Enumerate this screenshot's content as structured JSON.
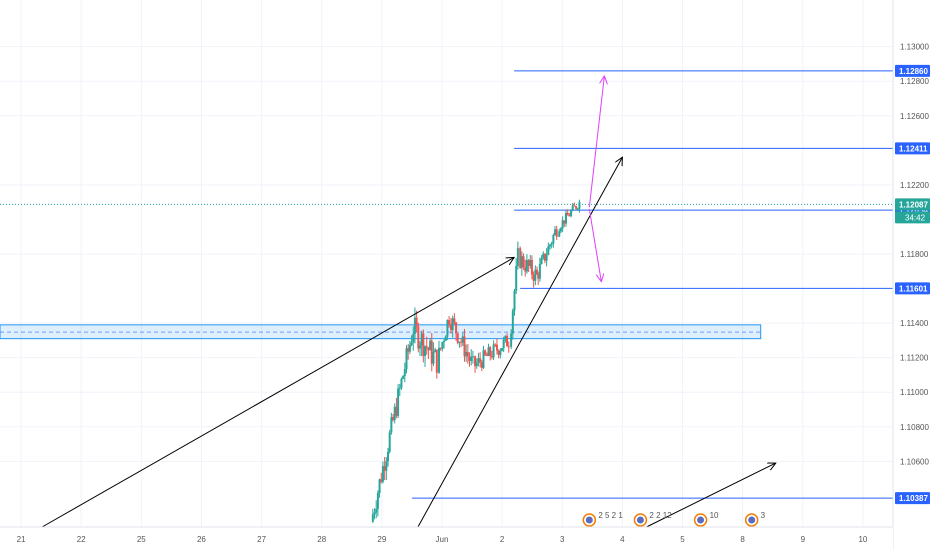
{
  "chart_data": {
    "type": "candlestick",
    "symbol": "EURUSD",
    "x_axis": {
      "ticks": [
        {
          "label": "21",
          "day": 21
        },
        {
          "label": "22",
          "day": 22
        },
        {
          "label": "25",
          "day": 23
        },
        {
          "label": "26",
          "day": 24
        },
        {
          "label": "27",
          "day": 25
        },
        {
          "label": "28",
          "day": 26
        },
        {
          "label": "29",
          "day": 27
        },
        {
          "label": "Jun",
          "day": 28
        },
        {
          "label": "2",
          "day": 29
        },
        {
          "label": "3",
          "day": 30
        },
        {
          "label": "4",
          "day": 31
        },
        {
          "label": "5",
          "day": 32
        },
        {
          "label": "8",
          "day": 33
        },
        {
          "label": "9",
          "day": 34
        },
        {
          "label": "10",
          "day": 35
        }
      ],
      "range": [
        20.65,
        35.5
      ]
    },
    "y_axis": {
      "range": [
        1.1022,
        1.1327
      ],
      "ticks": [
        "1.13000",
        "1.12800",
        "1.12600",
        "1.12200",
        "1.11800",
        "1.11400",
        "1.11200",
        "1.11000",
        "1.10800",
        "1.10600"
      ]
    },
    "price_labels": [
      {
        "value": 1.1286,
        "text": "1.12860",
        "kind": "level"
      },
      {
        "value": 1.12411,
        "text": "1.12411",
        "kind": "level"
      },
      {
        "value": 1.12054,
        "text": "1.12054",
        "kind": "level"
      },
      {
        "value": 1.12087,
        "text": "1.12087",
        "kind": "current"
      },
      {
        "value": 1.11601,
        "text": "1.11601",
        "kind": "level"
      },
      {
        "value": 1.10387,
        "text": "1.10387",
        "kind": "level"
      }
    ],
    "countdown": "34:42",
    "horizontal_levels": [
      {
        "value": 1.1286,
        "x_start": 29.2
      },
      {
        "value": 1.12411,
        "x_start": 29.2
      },
      {
        "value": 1.12054,
        "x_start": 29.2
      },
      {
        "value": 1.11601,
        "x_start": 29.3
      },
      {
        "value": 1.10387,
        "x_start": 27.5
      }
    ],
    "current_price_line": 1.12087,
    "zone": {
      "top": 1.1139,
      "bottom": 1.1131,
      "mid": 1.11348,
      "x_start": 20.65,
      "x_end": 33.3
    },
    "trendlines": [
      {
        "from": [
          21.35,
          1.1022
        ],
        "to": [
          29.2,
          1.1178
        ]
      },
      {
        "from": [
          27.6,
          1.1022
        ],
        "to": [
          31.0,
          1.1236
        ]
      },
      {
        "from": [
          31.4,
          1.1022
        ],
        "to": [
          33.55,
          1.1059
        ]
      }
    ],
    "projection_arrows": [
      {
        "from": [
          30.45,
          1.1207
        ],
        "to": [
          30.7,
          1.1283
        ]
      },
      {
        "from": [
          30.45,
          1.1206
        ],
        "to": [
          30.65,
          1.1164
        ]
      }
    ],
    "candle_segments": [
      {
        "from": 26.85,
        "to": 27.55,
        "open": 1.1025,
        "close": 1.1137,
        "noise": 0.0007
      },
      {
        "from": 27.55,
        "to": 27.95,
        "open": 1.1137,
        "close": 1.1118,
        "noise": 0.0008
      },
      {
        "from": 27.95,
        "to": 28.15,
        "open": 1.1118,
        "close": 1.1144,
        "noise": 0.0006
      },
      {
        "from": 28.15,
        "to": 28.55,
        "open": 1.1144,
        "close": 1.1115,
        "noise": 0.0006
      },
      {
        "from": 28.55,
        "to": 29.15,
        "open": 1.1115,
        "close": 1.113,
        "noise": 0.0005
      },
      {
        "from": 29.15,
        "to": 29.3,
        "open": 1.113,
        "close": 1.1178,
        "noise": 0.0006
      },
      {
        "from": 29.3,
        "to": 29.6,
        "open": 1.1178,
        "close": 1.1167,
        "noise": 0.0006
      },
      {
        "from": 29.6,
        "to": 29.95,
        "open": 1.1167,
        "close": 1.1195,
        "noise": 0.0005
      },
      {
        "from": 29.95,
        "to": 30.3,
        "open": 1.1195,
        "close": 1.121,
        "noise": 0.0003
      }
    ],
    "event_icons": [
      {
        "day": 30.45,
        "text": "2 5 2 1"
      },
      {
        "day": 31.3,
        "text": "2 2 12"
      },
      {
        "day": 32.3,
        "text": "10"
      },
      {
        "day": 33.15,
        "text": "3"
      }
    ]
  }
}
